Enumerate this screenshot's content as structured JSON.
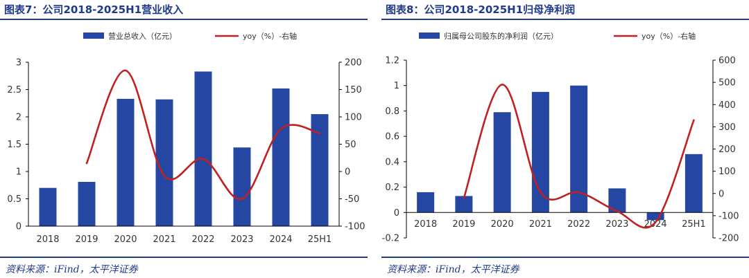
{
  "chart_data": [
    {
      "type": "bar",
      "title": "图表7：公司2018-2025H1营业收入",
      "categories": [
        "2018",
        "2019",
        "2020",
        "2021",
        "2022",
        "2023",
        "2024",
        "25H1"
      ],
      "series": [
        {
          "name": "营业总收入（亿元）",
          "type": "bar",
          "axis": "left",
          "color": "#2547a3",
          "values": [
            0.7,
            0.81,
            2.33,
            2.32,
            2.83,
            1.44,
            2.52,
            2.05
          ]
        },
        {
          "name": "yoy（%）-右轴",
          "type": "line",
          "axis": "right",
          "color": "#c0201f",
          "values": [
            null,
            15,
            185,
            -8,
            23,
            -50,
            78,
            70
          ]
        }
      ],
      "y_left": {
        "min": 0,
        "max": 3,
        "ticks": [
          "0",
          "0.5",
          "1",
          "1.5",
          "2",
          "2.5",
          "3"
        ]
      },
      "y_right": {
        "min": -100,
        "max": 200,
        "ticks": [
          "-100",
          "-50",
          "0",
          "50",
          "100",
          "150",
          "200"
        ]
      },
      "legend": "top",
      "grid": false,
      "source": "资料来源：iFind，太平洋证券"
    },
    {
      "type": "bar",
      "title": "图表8：公司2018-2025H1归母净利润",
      "categories": [
        "2018",
        "2019",
        "2020",
        "2021",
        "2022",
        "2023",
        "2024",
        "25H1"
      ],
      "series": [
        {
          "name": "归属母公司股东的净利润（亿元）",
          "type": "bar",
          "axis": "left",
          "color": "#2547a3",
          "values": [
            0.16,
            0.13,
            0.79,
            0.95,
            1.0,
            0.19,
            -0.06,
            0.46
          ]
        },
        {
          "name": "yoy（%）-右轴",
          "type": "line",
          "axis": "right",
          "color": "#c0201f",
          "values": [
            null,
            -20,
            490,
            5,
            5,
            -80,
            -130,
            330
          ]
        }
      ],
      "y_left": {
        "min": -0.2,
        "max": 1.2,
        "ticks": [
          "-0.2",
          "0",
          "0.2",
          "0.4",
          "0.6",
          "0.8",
          "1",
          "1.2"
        ]
      },
      "y_right": {
        "min": -200,
        "max": 600,
        "ticks": [
          "-200",
          "-100",
          "0",
          "100",
          "200",
          "300",
          "400",
          "500",
          "600"
        ]
      },
      "legend": "top",
      "grid": false,
      "source": "资料来源：iFind，太平洋证券"
    }
  ]
}
